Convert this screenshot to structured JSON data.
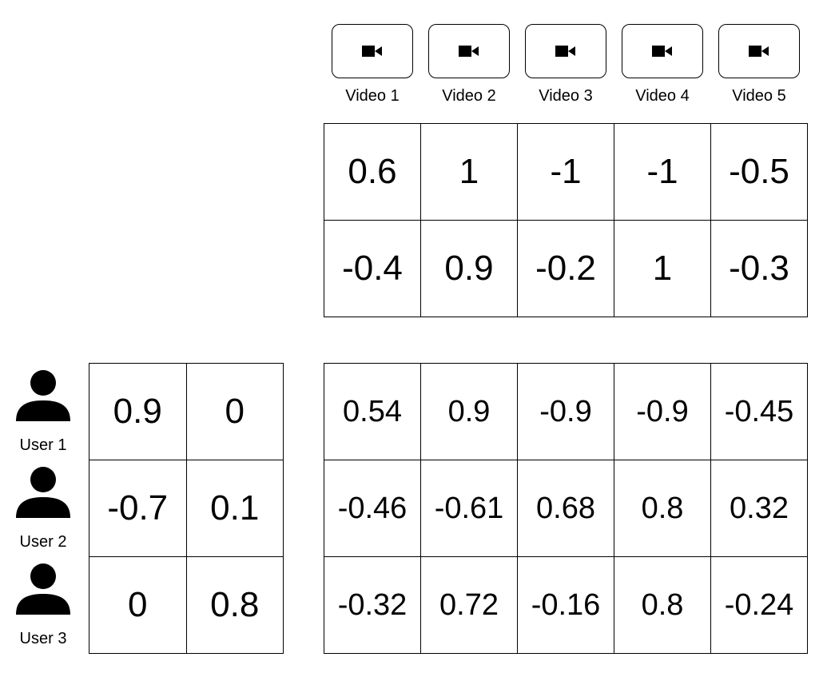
{
  "videos": [
    {
      "label": "Video 1",
      "icon": "video-camera-icon"
    },
    {
      "label": "Video 2",
      "icon": "video-camera-icon"
    },
    {
      "label": "Video 3",
      "icon": "video-camera-icon"
    },
    {
      "label": "Video 4",
      "icon": "video-camera-icon"
    },
    {
      "label": "Video 5",
      "icon": "video-camera-icon"
    }
  ],
  "video_factors": [
    [
      "0.6",
      "1",
      "-1",
      "-1",
      "-0.5"
    ],
    [
      "-0.4",
      "0.9",
      "-0.2",
      "1",
      "-0.3"
    ]
  ],
  "users": [
    {
      "label": "User 1",
      "icon": "user-icon"
    },
    {
      "label": "User 2",
      "icon": "user-icon"
    },
    {
      "label": "User 3",
      "icon": "user-icon"
    }
  ],
  "user_factors": [
    [
      "0.9",
      "0"
    ],
    [
      "-0.7",
      "0.1"
    ],
    [
      "0",
      "0.8"
    ]
  ],
  "ratings": [
    [
      "0.54",
      "0.9",
      "-0.9",
      "-0.9",
      "-0.45"
    ],
    [
      "-0.46",
      "-0.61",
      "0.68",
      "0.8",
      "0.32"
    ],
    [
      "-0.32",
      "0.72",
      "-0.16",
      "0.8",
      "-0.24"
    ]
  ]
}
